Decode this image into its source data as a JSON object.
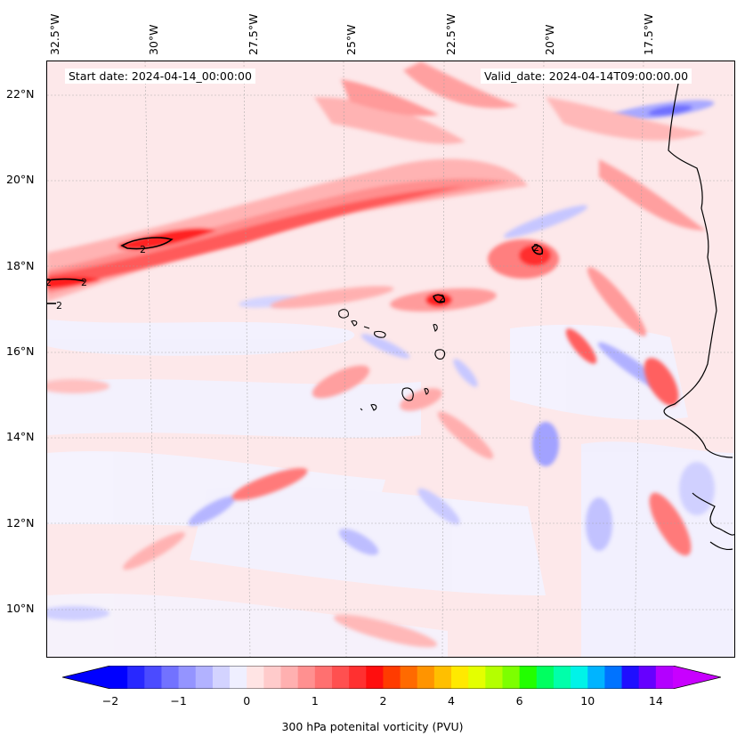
{
  "map": {
    "start_date": "Start date: 2024-04-14_00:00:00",
    "valid_date": "Valid_date: 2024-04-14T09:00:00.00",
    "lon_ticks": [
      "32.5°W",
      "30°W",
      "27.5°W",
      "25°W",
      "22.5°W",
      "20°W",
      "17.5°W"
    ],
    "lat_ticks": [
      "22°N",
      "20°N",
      "18°N",
      "16°N",
      "14°N",
      "12°N",
      "10°N"
    ],
    "contour_labels": [
      "2",
      "2",
      "2",
      "2",
      "2",
      "2"
    ],
    "field": "300 hPa potential vorticity",
    "extent": {
      "lon": [
        -32.6,
        -15.3
      ],
      "lat": [
        8.9,
        22.8
      ]
    }
  },
  "colorbar": {
    "label": "300 hPa potenital vorticity (PVU)",
    "tick_labels": [
      "−2",
      "−1",
      "0",
      "1",
      "2",
      "4",
      "6",
      "10",
      "14"
    ],
    "colors": [
      "#0000ff",
      "#2828ff",
      "#4b4bff",
      "#7272ff",
      "#9494ff",
      "#b2b2ff",
      "#d3d3ff",
      "#efefff",
      "#ffe4e4",
      "#ffcbcb",
      "#ffb0b0",
      "#ff9090",
      "#ff7070",
      "#ff5050",
      "#ff3030",
      "#ff0e0e",
      "#ff3b00",
      "#ff6a00",
      "#ff9400",
      "#ffbf00",
      "#ffe900",
      "#e4ff00",
      "#b4ff00",
      "#7dff00",
      "#22ff00",
      "#00ff60",
      "#00ffaa",
      "#00f3e8",
      "#00b4ff",
      "#0073ff",
      "#1f0fff",
      "#6600ff",
      "#b300ff"
    ],
    "extend_low": "#0000ff",
    "extend_high": "#c800ff"
  }
}
